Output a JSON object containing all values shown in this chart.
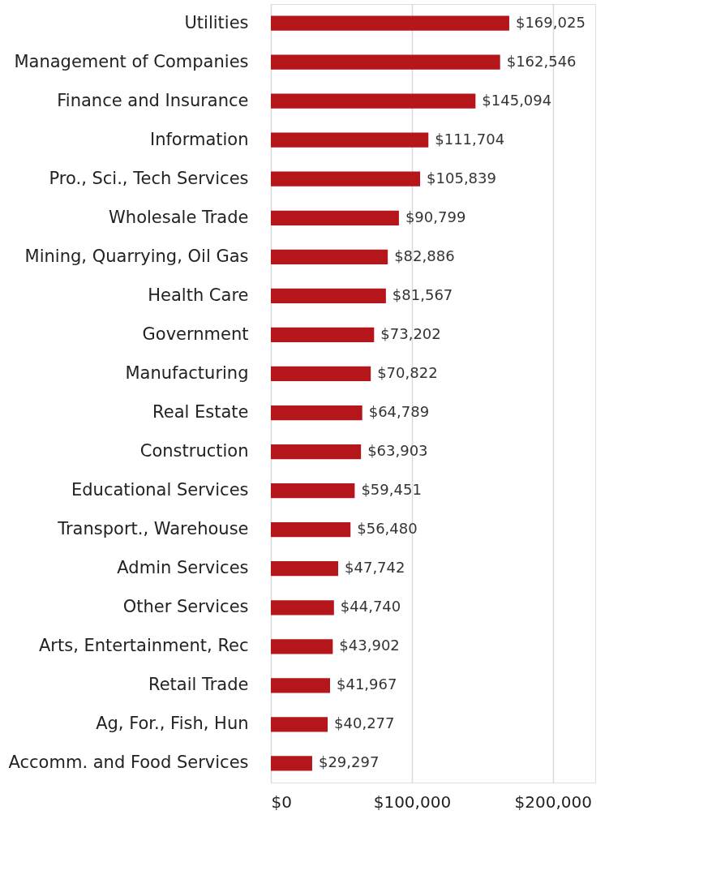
{
  "chart_data": {
    "type": "bar",
    "orientation": "horizontal",
    "categories": [
      "Utilities",
      "Management of Companies",
      "Finance and Insurance",
      "Information",
      "Pro., Sci., Tech Services",
      "Wholesale Trade",
      "Mining, Quarrying, Oil Gas",
      "Health Care",
      "Government",
      "Manufacturing",
      "Real Estate",
      "Construction",
      "Educational Services",
      "Transport., Warehouse",
      "Admin Services",
      "Other Services",
      "Arts, Entertainment, Rec",
      "Retail Trade",
      "Ag, For., Fish, Hun",
      "Accomm. and Food Services"
    ],
    "values": [
      169025,
      162546,
      145094,
      111704,
      105839,
      90799,
      82886,
      81567,
      73202,
      70822,
      64789,
      63903,
      59451,
      56480,
      47742,
      44740,
      43902,
      41967,
      40277,
      29297
    ],
    "value_labels": [
      "$169,025",
      "$162,546",
      "$145,094",
      "$111,704",
      "$105,839",
      "$90,799",
      "$82,886",
      "$81,567",
      "$73,202",
      "$70,822",
      "$64,789",
      "$63,903",
      "$59,451",
      "$56,480",
      "$47,742",
      "$44,740",
      "$43,902",
      "$41,967",
      "$40,277",
      "$29,297"
    ],
    "color": "#b5161b",
    "xlim": [
      0,
      230000
    ],
    "xticks": [
      {
        "value": 0,
        "label": "$0"
      },
      {
        "value": 100000,
        "label": "$100,000"
      },
      {
        "value": 200000,
        "label": "$200,000"
      }
    ],
    "grid": "x"
  }
}
